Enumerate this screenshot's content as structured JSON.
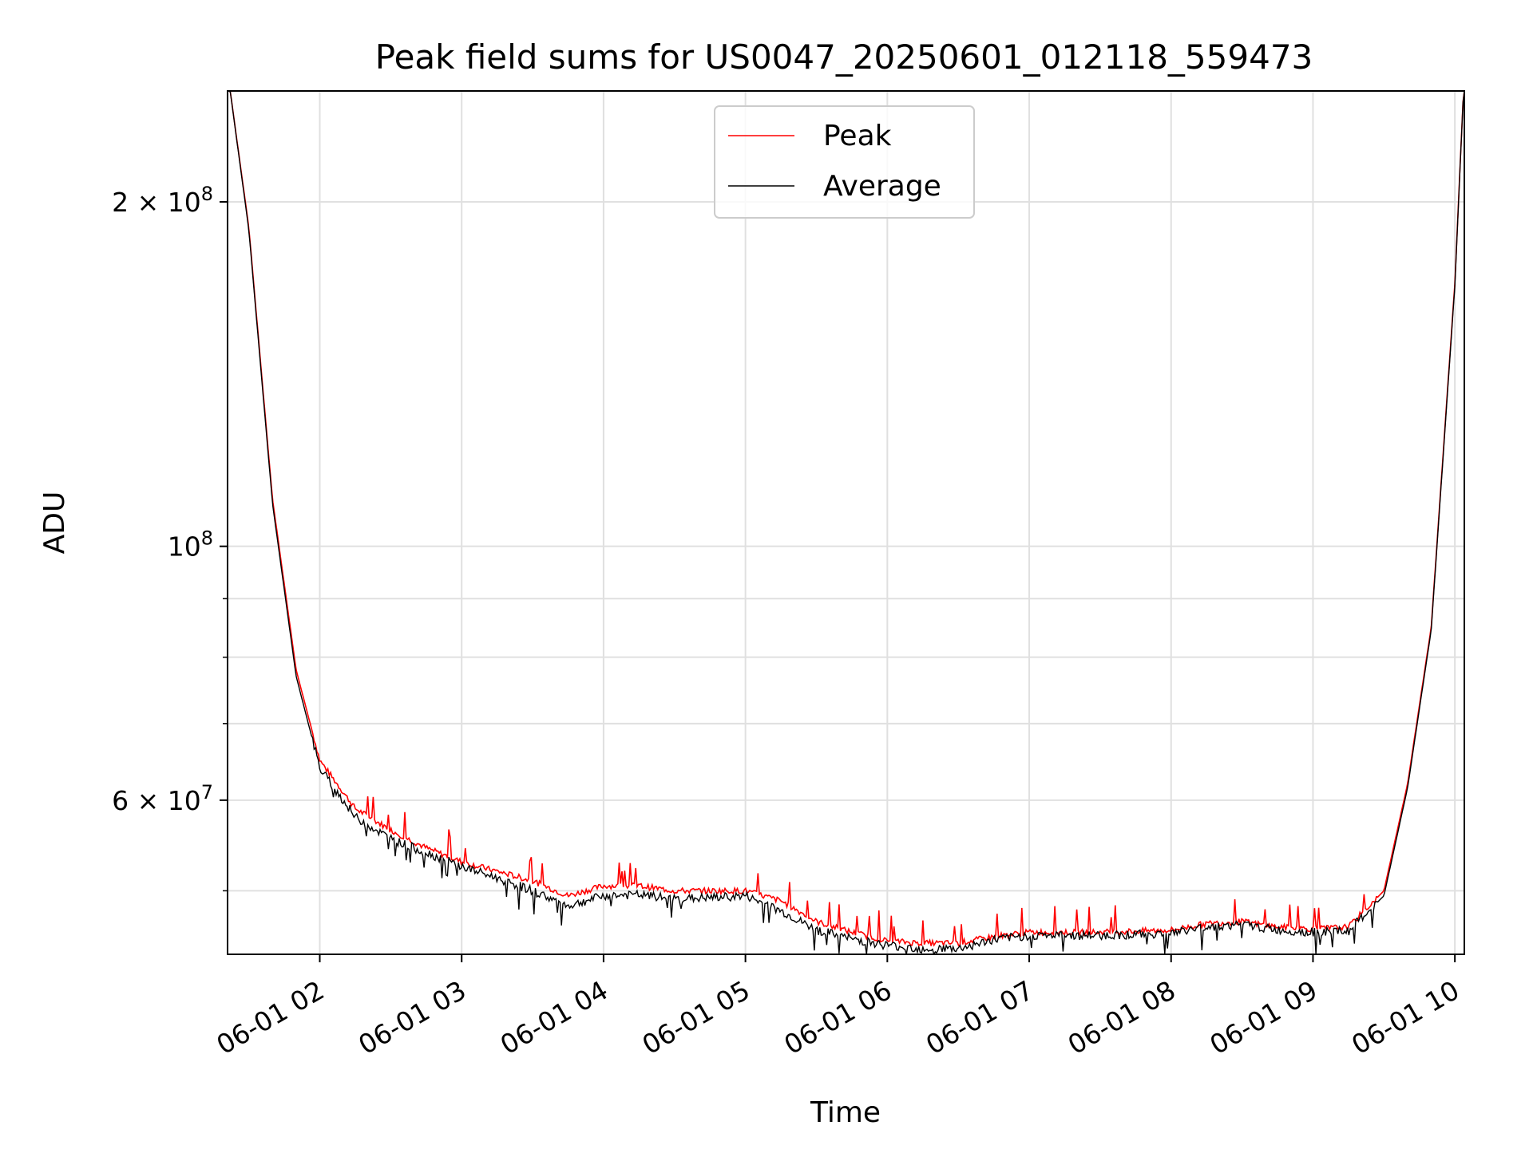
{
  "chart_data": {
    "type": "line",
    "title": "Peak field sums for US0047_20250601_012118_559473",
    "xlabel": "Time",
    "ylabel": "ADU",
    "xscale": "time",
    "yscale": "log",
    "xlim": [
      "2025-06-01 01:21",
      "2025-06-01 10:04"
    ],
    "ylim": [
      44000000,
      250000000
    ],
    "grid": true,
    "legend_position": "top-center",
    "x_ticks": [
      "06-01 02",
      "06-01 03",
      "06-01 04",
      "06-01 05",
      "06-01 06",
      "06-01 07",
      "06-01 08",
      "06-01 09",
      "06-01 10"
    ],
    "y_major_ticks": [
      {
        "value": 200000000,
        "mant": "2",
        "exp": "8"
      },
      {
        "value": 100000000,
        "mant": "",
        "exp": "8"
      },
      {
        "value": 60000000,
        "mant": "6",
        "exp": "7"
      }
    ],
    "y_minor_gridlines": [
      50000000,
      70000000,
      80000000,
      90000000
    ],
    "series": [
      {
        "name": "Peak",
        "color": "#ff0000",
        "x": [
          "2025-06-01 01:21",
          "2025-06-01 01:30",
          "2025-06-01 01:40",
          "2025-06-01 01:50",
          "2025-06-01 02:00",
          "2025-06-01 02:15",
          "2025-06-01 02:30",
          "2025-06-01 02:45",
          "2025-06-01 03:00",
          "2025-06-01 03:15",
          "2025-06-01 03:30",
          "2025-06-01 03:45",
          "2025-06-01 04:00",
          "2025-06-01 04:15",
          "2025-06-01 04:30",
          "2025-06-01 04:45",
          "2025-06-01 05:00",
          "2025-06-01 05:15",
          "2025-06-01 05:30",
          "2025-06-01 05:45",
          "2025-06-01 06:00",
          "2025-06-01 06:15",
          "2025-06-01 06:30",
          "2025-06-01 06:45",
          "2025-06-01 07:00",
          "2025-06-01 07:30",
          "2025-06-01 08:00",
          "2025-06-01 08:15",
          "2025-06-01 08:30",
          "2025-06-01 08:45",
          "2025-06-01 09:00",
          "2025-06-01 09:15",
          "2025-06-01 09:30",
          "2025-06-01 09:40",
          "2025-06-01 09:50",
          "2025-06-01 10:00",
          "2025-06-01 10:04"
        ],
        "values": [
          260000000,
          190000000,
          110000000,
          78000000,
          65000000,
          59000000,
          56500000,
          54500000,
          53000000,
          52000000,
          51000000,
          49500000,
          50500000,
          50500000,
          50000000,
          50000000,
          50000000,
          49000000,
          47000000,
          46000000,
          45200000,
          45000000,
          45000000,
          45600000,
          46000000,
          46000000,
          46200000,
          46800000,
          47000000,
          46500000,
          46300000,
          46500000,
          50000000,
          62000000,
          85000000,
          170000000,
          260000000
        ]
      },
      {
        "name": "Average",
        "color": "#000000",
        "x": [
          "2025-06-01 01:21",
          "2025-06-01 01:30",
          "2025-06-01 01:40",
          "2025-06-01 01:50",
          "2025-06-01 02:00",
          "2025-06-01 02:15",
          "2025-06-01 02:30",
          "2025-06-01 02:45",
          "2025-06-01 03:00",
          "2025-06-01 03:15",
          "2025-06-01 03:30",
          "2025-06-01 03:45",
          "2025-06-01 04:00",
          "2025-06-01 04:15",
          "2025-06-01 04:30",
          "2025-06-01 04:45",
          "2025-06-01 05:00",
          "2025-06-01 05:15",
          "2025-06-01 05:30",
          "2025-06-01 05:45",
          "2025-06-01 06:00",
          "2025-06-01 06:15",
          "2025-06-01 06:30",
          "2025-06-01 06:45",
          "2025-06-01 07:00",
          "2025-06-01 07:30",
          "2025-06-01 08:00",
          "2025-06-01 08:15",
          "2025-06-01 08:30",
          "2025-06-01 08:45",
          "2025-06-01 09:00",
          "2025-06-01 09:15",
          "2025-06-01 09:30",
          "2025-06-01 09:40",
          "2025-06-01 09:50",
          "2025-06-01 10:00",
          "2025-06-01 10:04"
        ],
        "values": [
          260000000,
          189000000,
          109000000,
          77000000,
          64000000,
          58000000,
          55500000,
          54000000,
          52500000,
          51300000,
          50000000,
          48500000,
          49500000,
          49600000,
          49200000,
          49300000,
          49500000,
          48000000,
          46200000,
          45400000,
          44800000,
          44500000,
          44500000,
          45300000,
          45700000,
          45700000,
          45900000,
          46500000,
          46700000,
          46200000,
          46000000,
          46100000,
          49500000,
          61500000,
          84500000,
          169000000,
          260000000
        ]
      }
    ]
  }
}
